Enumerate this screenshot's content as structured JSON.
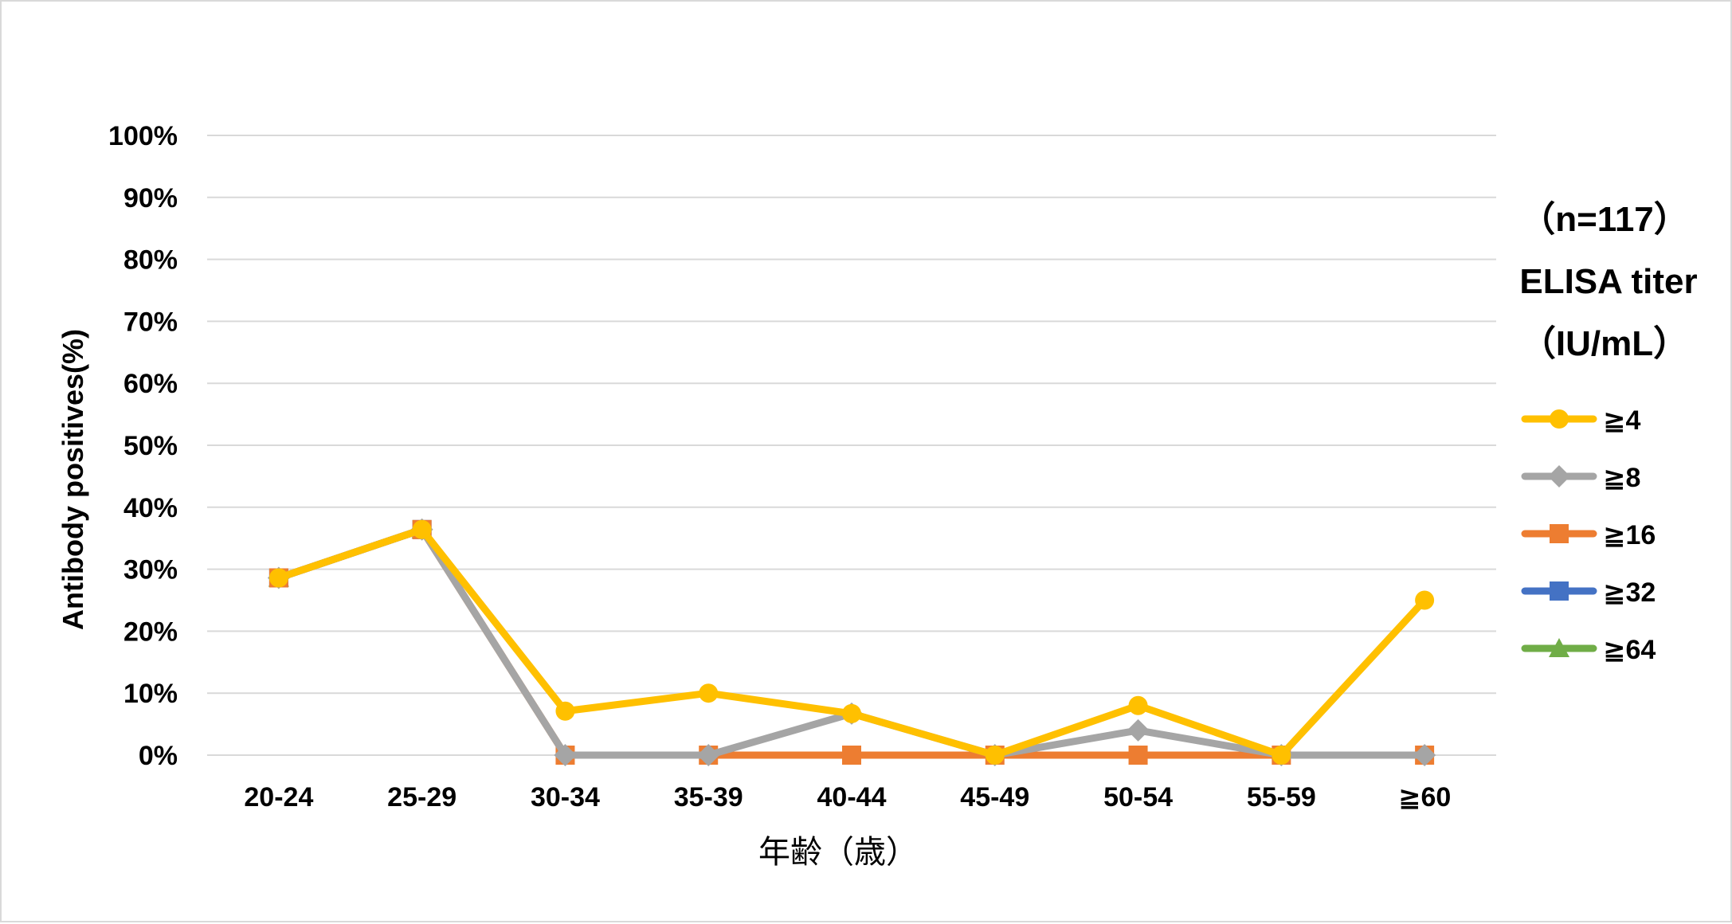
{
  "chart_data": {
    "type": "line",
    "categories": [
      "20-24",
      "25-29",
      "30-34",
      "35-39",
      "40-44",
      "45-49",
      "50-54",
      "55-59",
      "≧60"
    ],
    "ylabel": "Antibody positives(%)",
    "xlabel": "年齢（歳）",
    "ylim": [
      0,
      100
    ],
    "y_ticks": [
      "0%",
      "10%",
      "20%",
      "30%",
      "40%",
      "50%",
      "60%",
      "70%",
      "80%",
      "90%",
      "100%"
    ],
    "grid": true,
    "legend_position": "right",
    "legend_header": [
      "（n=117）",
      "ELISA titer",
      "（IU/mL）"
    ],
    "series": [
      {
        "name": "≧64",
        "color": "#70ad47",
        "marker": "triangle",
        "values": [
          28.6,
          36.4,
          null,
          null,
          null,
          null,
          null,
          null,
          null
        ]
      },
      {
        "name": "≧32",
        "color": "#4472c4",
        "marker": "square",
        "values": [
          28.6,
          36.4,
          null,
          null,
          null,
          null,
          null,
          null,
          null
        ]
      },
      {
        "name": "≧16",
        "color": "#ed7d31",
        "marker": "square",
        "values": [
          28.6,
          36.4,
          0,
          0,
          0,
          0,
          0,
          0,
          0
        ]
      },
      {
        "name": "≧8",
        "color": "#a5a5a5",
        "marker": "diamond",
        "values": [
          28.6,
          36.4,
          0,
          0,
          6.7,
          0,
          4.0,
          0,
          0
        ]
      },
      {
        "name": "≧4",
        "color": "#ffc000",
        "marker": "circle",
        "values": [
          28.6,
          36.4,
          7.1,
          10.0,
          6.7,
          0,
          8.0,
          0,
          25.0
        ]
      }
    ],
    "legend_order": [
      "≧4",
      "≧8",
      "≧16",
      "≧32",
      "≧64"
    ]
  }
}
